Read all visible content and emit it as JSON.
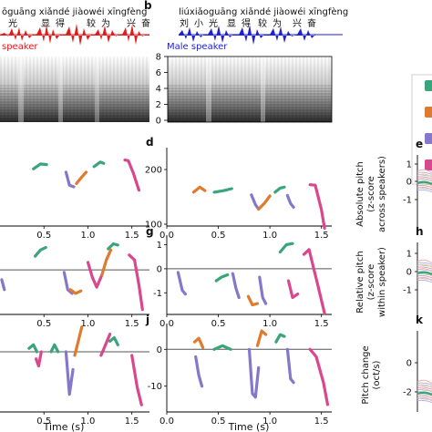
{
  "figure": {
    "top_left": {
      "pinyin": "ōguāng xiǎndé jiàowéi xīngfèng",
      "hanzi": [
        "光",
        "显",
        "得",
        "较",
        "为",
        "兴",
        "奋"
      ],
      "speaker": "speaker"
    },
    "top_mid": {
      "panel_letter": "b",
      "pinyin": "liúxiǎoguāng xiǎndé jiàowéi xīngfèng",
      "hanzi": [
        "刘",
        "小",
        "光",
        "显",
        "得",
        "较",
        "为",
        "兴",
        "奋"
      ],
      "speaker": "Male speaker"
    },
    "spectrogram": {
      "yticks": [
        "8",
        "6",
        "4",
        "2",
        "0"
      ]
    },
    "panel_letters": [
      "d",
      "e",
      "g",
      "h",
      "j",
      "k"
    ],
    "right_ylabels": {
      "e": [
        "Absolute pitch",
        "(z-score",
        "across speakers)"
      ],
      "h": [
        "Relative pitch",
        "(z-score",
        "within speaker)"
      ],
      "k": [
        "Pitch change",
        "(oct/s)"
      ]
    },
    "xlabel": "Time (s)",
    "colors": {
      "speaker_red": "#e41a1c",
      "speaker_blue": "#1f1fd6",
      "green": "#3aa57a",
      "orange": "#e07a2e",
      "purple": "#8577c9",
      "pink": "#d9478f"
    }
  },
  "chart_data": [
    {
      "type": "line",
      "panel": "d",
      "ylim": [
        100,
        200
      ],
      "yticks": [
        "100",
        "200"
      ],
      "xlim": [
        0,
        1.6
      ],
      "xticks": [
        "0.0",
        "0.5",
        "1.0",
        "1.5"
      ],
      "segments": [
        {
          "color": "orange",
          "x": [
            0.26,
            0.32,
            0.37
          ],
          "y": [
            150,
            160,
            153
          ]
        },
        {
          "color": "green",
          "x": [
            0.46,
            0.55,
            0.63
          ],
          "y": [
            150,
            153,
            157
          ]
        },
        {
          "color": "purple",
          "x": [
            0.82,
            0.86,
            0.89
          ],
          "y": [
            145,
            128,
            121
          ]
        },
        {
          "color": "orange",
          "x": [
            0.89,
            0.95,
            1.0
          ],
          "y": [
            121,
            131,
            143
          ]
        },
        {
          "color": "green",
          "x": [
            1.05,
            1.1,
            1.14
          ],
          "y": [
            150,
            158,
            160
          ]
        },
        {
          "color": "purple",
          "x": [
            1.17,
            1.2,
            1.23
          ],
          "y": [
            144,
            130,
            124
          ]
        },
        {
          "color": "pink",
          "x": [
            1.39,
            1.44,
            1.5,
            1.53
          ],
          "y": [
            165,
            164,
            120,
            95
          ]
        }
      ]
    },
    {
      "type": "line",
      "panel": "g",
      "ylim": [
        -1.9,
        1.4
      ],
      "yticks": [
        "1",
        "0",
        "-1"
      ],
      "xlim": [
        0,
        1.6
      ],
      "xticks": [
        "0.0",
        "0.5",
        "1.0",
        "1.5"
      ],
      "reference_line": 0,
      "segments": [
        {
          "color": "purple",
          "x": [
            0.11,
            0.15,
            0.18
          ],
          "y": [
            -0.15,
            -0.9,
            -1.05
          ]
        },
        {
          "color": "green",
          "x": [
            0.48,
            0.53,
            0.59
          ],
          "y": [
            -0.5,
            -0.35,
            -0.25
          ]
        },
        {
          "color": "purple",
          "x": [
            0.64,
            0.67,
            0.7
          ],
          "y": [
            -0.2,
            -0.8,
            -1.2
          ]
        },
        {
          "color": "orange",
          "x": [
            0.79,
            0.83,
            0.88
          ],
          "y": [
            -1.15,
            -1.5,
            -1.45
          ]
        },
        {
          "color": "purple",
          "x": [
            0.9,
            0.93,
            0.96
          ],
          "y": [
            -0.35,
            -1.2,
            -1.45
          ]
        },
        {
          "color": "pink",
          "x": [
            1.18,
            1.22,
            1.27
          ],
          "y": [
            -0.5,
            -1.2,
            -1.05
          ]
        },
        {
          "color": "green",
          "x": [
            1.1,
            1.16,
            1.22
          ],
          "y": [
            0.7,
            1.0,
            1.05
          ]
        },
        {
          "color": "pink",
          "x": [
            1.33,
            1.38,
            1.46,
            1.53
          ],
          "y": [
            0.6,
            0.8,
            -0.6,
            -1.85
          ]
        }
      ]
    },
    {
      "type": "line",
      "panel": "j",
      "ylim": [
        -17,
        7
      ],
      "yticks": [
        "0",
        "-10"
      ],
      "xlim": [
        0,
        1.6
      ],
      "xticks": [
        "0.0",
        "0.5",
        "1.0",
        "1.5"
      ],
      "reference_line": 0,
      "segments": [
        {
          "color": "orange",
          "x": [
            0.27,
            0.31,
            0.35
          ],
          "y": [
            2,
            3,
            0.5
          ]
        },
        {
          "color": "green",
          "x": [
            0.46,
            0.54,
            0.62
          ],
          "y": [
            0,
            1,
            0
          ]
        },
        {
          "color": "purple",
          "x": [
            0.28,
            0.31,
            0.34
          ],
          "y": [
            -2,
            -7,
            -10
          ]
        },
        {
          "color": "purple",
          "x": [
            0.8,
            0.83,
            0.86,
            0.89
          ],
          "y": [
            0,
            -12,
            -13,
            -5
          ]
        },
        {
          "color": "orange",
          "x": [
            0.88,
            0.92,
            0.96
          ],
          "y": [
            1,
            5,
            4
          ]
        },
        {
          "color": "purple",
          "x": [
            1.17,
            1.2,
            1.23
          ],
          "y": [
            0,
            -8,
            -9
          ]
        },
        {
          "color": "green",
          "x": [
            1.06,
            1.1,
            1.14
          ],
          "y": [
            2,
            4,
            3.5
          ]
        },
        {
          "color": "pink",
          "x": [
            1.39,
            1.45,
            1.52,
            1.56
          ],
          "y": [
            0,
            -2,
            -9,
            -15
          ]
        }
      ]
    },
    {
      "type": "line",
      "panel": "left column (top row)",
      "xticks": [
        "0.5",
        "1.0",
        "1.5"
      ],
      "segments": [
        {
          "color": "green",
          "x": [
            0.38,
            0.46,
            0.53
          ],
          "y": [
            0.55,
            0.7,
            0.68
          ]
        },
        {
          "color": "purple",
          "x": [
            0.75,
            0.79,
            0.84
          ],
          "y": [
            0.45,
            0.05,
            0.0
          ]
        },
        {
          "color": "orange",
          "x": [
            0.87,
            0.93,
            0.98
          ],
          "y": [
            0.1,
            0.3,
            0.45
          ]
        },
        {
          "color": "green",
          "x": [
            1.07,
            1.14,
            1.18
          ],
          "y": [
            0.62,
            0.76,
            0.72
          ]
        },
        {
          "color": "pink",
          "x": [
            1.42,
            1.46,
            1.52,
            1.58
          ],
          "y": [
            0.82,
            0.8,
            0.4,
            -0.1
          ]
        }
      ]
    },
    {
      "type": "line",
      "panel": "left column (middle row)",
      "xticks": [
        "0.5",
        "1.0",
        "1.5"
      ],
      "reference_line": 0,
      "segments": [
        {
          "color": "purple",
          "x": [
            0.02,
            0.05
          ],
          "y": [
            -0.4,
            -0.8
          ]
        },
        {
          "color": "green",
          "x": [
            0.4,
            0.46,
            0.52
          ],
          "y": [
            0.55,
            0.8,
            0.9
          ]
        },
        {
          "color": "purple",
          "x": [
            0.73,
            0.77,
            0.82
          ],
          "y": [
            -0.1,
            -0.8,
            -0.95
          ]
        },
        {
          "color": "orange",
          "x": [
            0.8,
            0.86,
            0.92
          ],
          "y": [
            -0.8,
            -0.95,
            -0.85
          ]
        },
        {
          "color": "pink",
          "x": [
            1.0,
            1.05,
            1.1,
            1.16
          ],
          "y": [
            0.3,
            -0.3,
            -0.7,
            -0.2
          ]
        },
        {
          "color": "orange",
          "x": [
            1.16,
            1.21,
            1.26
          ],
          "y": [
            -0.2,
            0.4,
            0.8
          ]
        },
        {
          "color": "green",
          "x": [
            1.23,
            1.29,
            1.34
          ],
          "y": [
            0.85,
            1.05,
            1.0
          ]
        },
        {
          "color": "pink",
          "x": [
            1.47,
            1.53,
            1.58,
            1.62
          ],
          "y": [
            0.6,
            0.4,
            -0.6,
            -1.6
          ]
        }
      ]
    },
    {
      "type": "line",
      "panel": "left column (bottom row)",
      "xticks": [
        "0.5",
        "1.0",
        "1.5"
      ],
      "reference_line": 0,
      "segments": [
        {
          "color": "green",
          "x": [
            0.33,
            0.38,
            0.42
          ],
          "y": [
            1,
            2,
            0
          ]
        },
        {
          "color": "pink",
          "x": [
            0.41,
            0.44,
            0.47
          ],
          "y": [
            -2,
            -4,
            0
          ]
        },
        {
          "color": "green",
          "x": [
            0.58,
            0.62,
            0.66
          ],
          "y": [
            0,
            2,
            0
          ]
        },
        {
          "color": "purple",
          "x": [
            0.75,
            0.79,
            0.83
          ],
          "y": [
            0,
            -12,
            -5
          ]
        },
        {
          "color": "orange",
          "x": [
            0.85,
            0.89,
            0.93
          ],
          "y": [
            -1,
            3,
            7
          ]
        },
        {
          "color": "pink",
          "x": [
            1.15,
            1.2,
            1.25
          ],
          "y": [
            -1,
            2,
            5
          ]
        },
        {
          "color": "green",
          "x": [
            1.25,
            1.3,
            1.34
          ],
          "y": [
            3,
            4,
            2
          ]
        },
        {
          "color": "pink",
          "x": [
            1.5,
            1.56,
            1.61
          ],
          "y": [
            -1,
            -10,
            -15
          ]
        }
      ]
    }
  ]
}
